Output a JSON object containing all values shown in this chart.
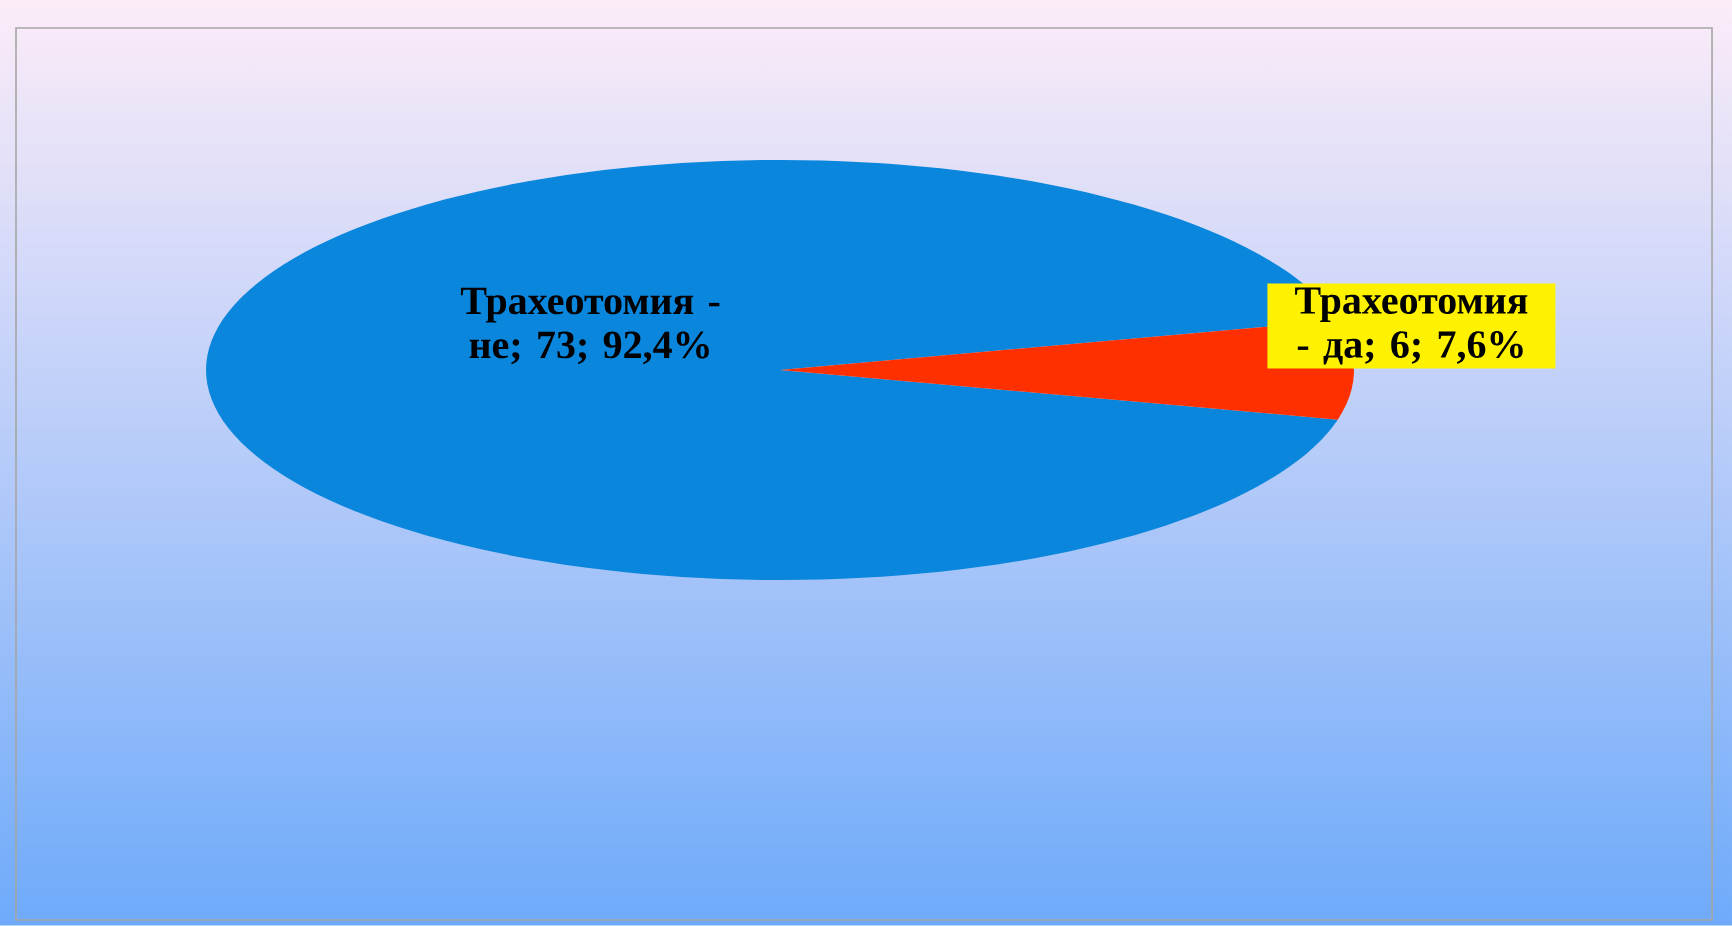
{
  "chart_data": {
    "type": "pie",
    "categories": [
      "Трахеотомия - не; 73; 92,4%",
      "Трахеотомия - да; 6; 7,6%"
    ],
    "values": [
      73,
      6
    ],
    "colors": [
      "#0a86dc",
      "#ff3000"
    ]
  }
}
